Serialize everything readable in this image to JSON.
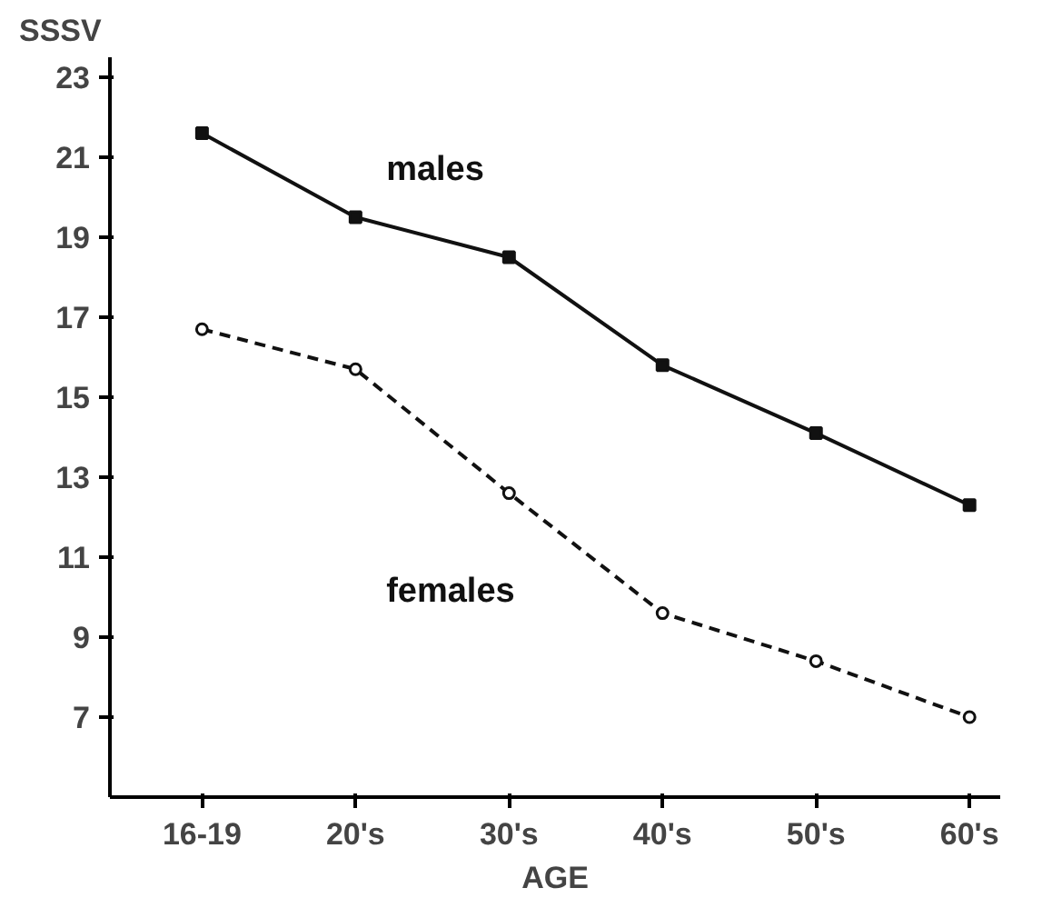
{
  "chart_data": {
    "type": "line",
    "xlabel": "AGE",
    "ylabel": "SSSV",
    "categories": [
      "16-19",
      "20's",
      "30's",
      "40's",
      "50's",
      "60's"
    ],
    "series": [
      {
        "name": "males",
        "color": "#111111",
        "values": [
          21.6,
          19.5,
          18.5,
          15.8,
          14.1,
          12.3
        ],
        "marker": "square",
        "line_style": "solid"
      },
      {
        "name": "females",
        "color": "#111111",
        "values": [
          16.7,
          15.7,
          12.6,
          9.6,
          8.4,
          7.0
        ],
        "marker": "circle",
        "line_style": "dashed"
      }
    ],
    "ylim": [
      5,
      23.5
    ],
    "yticks": [
      7,
      9,
      11,
      13,
      15,
      17,
      19,
      21,
      23
    ],
    "grid": false,
    "legend": false
  }
}
